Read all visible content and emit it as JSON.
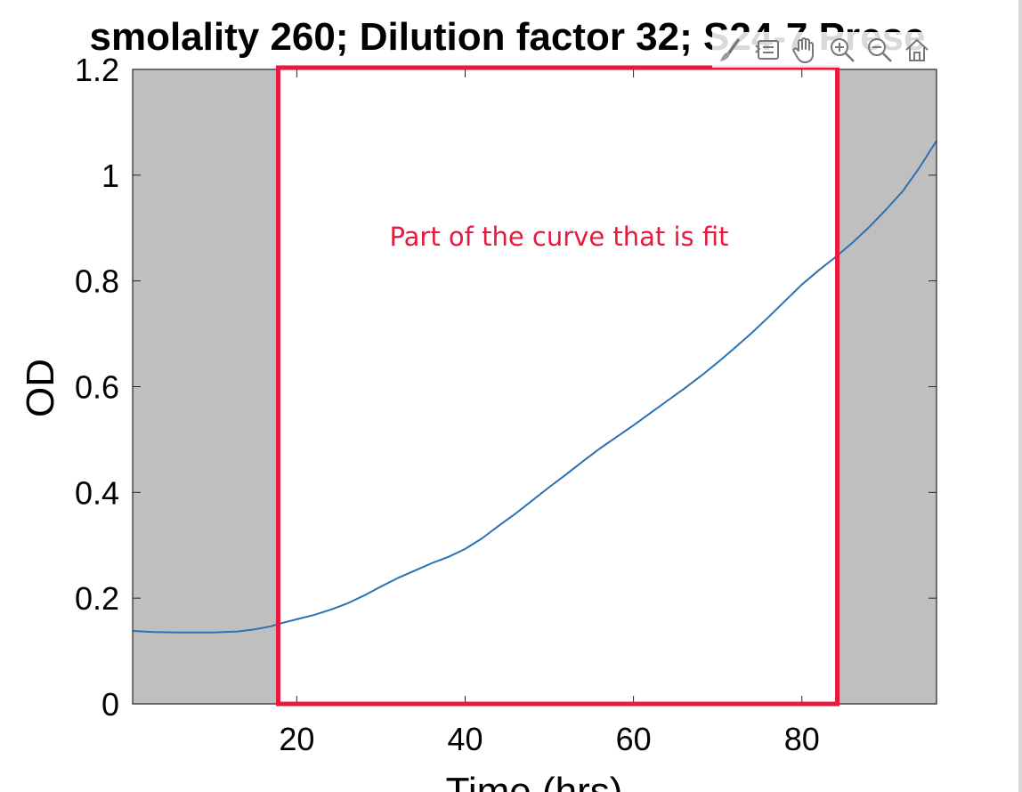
{
  "figure": {
    "title": "smolality 260; Dilution factor 32; S24-7 Prese",
    "annotation": "Part of the curve that is fit",
    "annotation_color": "#e8193c",
    "shade_color": "#bfbfbf",
    "line_color": "#2a72b5",
    "toolbar": [
      "brush-icon",
      "data-tips-icon",
      "pan-icon",
      "zoom-in-icon",
      "zoom-out-icon",
      "home-icon"
    ]
  },
  "chart_data": {
    "type": "line",
    "title": "smolality 260; Dilution factor 32; S24-7 Prese",
    "xlabel": "Time (hrs)",
    "ylabel": "OD",
    "xlim": [
      0.5,
      96
    ],
    "ylim": [
      0,
      1.2
    ],
    "xticks": [
      20,
      40,
      60,
      80
    ],
    "yticks": [
      0,
      0.2,
      0.4,
      0.6,
      0.8,
      1,
      1.2
    ],
    "ytick_labels": [
      "0",
      "0.2",
      "0.4",
      "0.6",
      "0.8",
      "1",
      "1.2"
    ],
    "grid": false,
    "fit_window": [
      18,
      84
    ],
    "highlight_box": [
      18,
      84
    ],
    "series": [
      {
        "x": [
          0.5,
          3,
          6,
          10,
          13,
          15,
          17,
          18,
          20,
          22,
          24,
          26,
          28,
          30,
          32,
          34,
          36,
          38,
          40,
          42,
          44,
          46,
          48,
          50,
          52,
          54,
          56,
          58,
          60,
          62,
          64,
          66,
          68,
          70,
          72,
          74,
          76,
          78,
          80,
          82,
          84,
          86,
          88,
          90,
          92,
          94,
          96
        ],
        "y": [
          0.138,
          0.136,
          0.135,
          0.135,
          0.137,
          0.141,
          0.147,
          0.152,
          0.16,
          0.168,
          0.178,
          0.19,
          0.205,
          0.222,
          0.238,
          0.252,
          0.266,
          0.278,
          0.293,
          0.313,
          0.337,
          0.36,
          0.385,
          0.41,
          0.434,
          0.459,
          0.483,
          0.505,
          0.527,
          0.55,
          0.573,
          0.596,
          0.62,
          0.646,
          0.673,
          0.701,
          0.731,
          0.762,
          0.793,
          0.82,
          0.845,
          0.872,
          0.902,
          0.935,
          0.97,
          1.015,
          1.065
        ]
      }
    ]
  }
}
